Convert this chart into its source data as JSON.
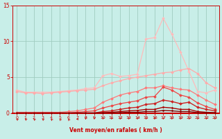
{
  "xlabel": "Vent moyen/en rafales ( km/h )",
  "xlim": [
    -0.5,
    23.5
  ],
  "ylim": [
    0,
    15
  ],
  "yticks": [
    0,
    5,
    10,
    15
  ],
  "xticks": [
    0,
    1,
    2,
    3,
    4,
    5,
    6,
    7,
    8,
    9,
    10,
    11,
    12,
    13,
    14,
    15,
    16,
    17,
    18,
    19,
    20,
    21,
    22,
    23
  ],
  "bg_color": "#c8eee8",
  "grid_color": "#a0ccc0",
  "lines": [
    {
      "y": [
        3.2,
        2.9,
        2.9,
        2.9,
        2.9,
        3.0,
        3.1,
        3.2,
        3.4,
        3.5,
        5.2,
        5.5,
        5.1,
        5.2,
        5.4,
        10.3,
        10.5,
        13.2,
        11.0,
        8.5,
        5.8,
        3.0,
        2.8,
        3.2
      ],
      "color": "#ffbbbb",
      "lw": 0.9,
      "ms": 2.0
    },
    {
      "y": [
        3.0,
        2.8,
        2.8,
        2.7,
        2.8,
        2.9,
        3.0,
        3.1,
        3.2,
        3.3,
        3.8,
        4.2,
        4.5,
        4.8,
        5.0,
        5.2,
        5.4,
        5.6,
        5.7,
        6.0,
        6.2,
        5.5,
        4.2,
        3.5
      ],
      "color": "#ffaaaa",
      "lw": 0.9,
      "ms": 2.0
    },
    {
      "y": [
        0.1,
        0.1,
        0.1,
        0.1,
        0.1,
        0.1,
        0.2,
        0.3,
        0.5,
        0.7,
        1.5,
        2.0,
        2.5,
        2.8,
        3.0,
        3.5,
        3.5,
        3.8,
        3.5,
        3.3,
        3.2,
        2.5,
        1.8,
        1.2
      ],
      "color": "#ff7777",
      "lw": 0.9,
      "ms": 2.0
    },
    {
      "y": [
        0.0,
        0.0,
        0.0,
        0.0,
        0.0,
        0.0,
        0.0,
        0.1,
        0.2,
        0.3,
        0.7,
        1.0,
        1.3,
        1.5,
        1.7,
        2.2,
        2.3,
        3.6,
        3.2,
        2.5,
        2.2,
        1.4,
        0.9,
        0.5
      ],
      "color": "#ee4444",
      "lw": 0.9,
      "ms": 2.0
    },
    {
      "y": [
        0.0,
        0.0,
        0.0,
        0.0,
        0.0,
        0.0,
        0.0,
        0.0,
        0.0,
        0.0,
        0.2,
        0.3,
        0.5,
        0.7,
        0.8,
        1.2,
        1.3,
        1.8,
        1.6,
        1.3,
        1.5,
        0.8,
        0.5,
        0.3
      ],
      "color": "#cc2222",
      "lw": 1.0,
      "ms": 2.0
    },
    {
      "y": [
        0.0,
        0.0,
        0.0,
        0.0,
        0.0,
        0.0,
        0.0,
        0.0,
        0.0,
        0.0,
        0.05,
        0.1,
        0.2,
        0.3,
        0.35,
        0.5,
        0.5,
        0.8,
        0.7,
        0.5,
        0.5,
        0.2,
        0.1,
        0.05
      ],
      "color": "#aa0000",
      "lw": 1.0,
      "ms": 1.5
    },
    {
      "y": [
        0.0,
        0.0,
        0.0,
        0.0,
        0.0,
        0.0,
        0.0,
        0.0,
        0.0,
        0.0,
        0.0,
        0.0,
        0.05,
        0.1,
        0.1,
        0.2,
        0.2,
        0.35,
        0.3,
        0.2,
        0.2,
        0.05,
        0.02,
        0.02
      ],
      "color": "#880000",
      "lw": 1.0,
      "ms": 1.5
    }
  ],
  "wind_symbols": {
    "x": [
      0,
      1,
      2,
      3,
      4,
      5,
      6,
      7,
      8,
      9,
      10,
      11,
      12,
      13,
      14,
      15,
      16,
      17,
      18,
      19,
      20,
      21,
      22,
      23
    ],
    "angles_deg": [
      230,
      230,
      225,
      225,
      220,
      215,
      210,
      270,
      0,
      350,
      345,
      340,
      340,
      340,
      340,
      340,
      340,
      340,
      340,
      340,
      340,
      340,
      340,
      340
    ]
  }
}
